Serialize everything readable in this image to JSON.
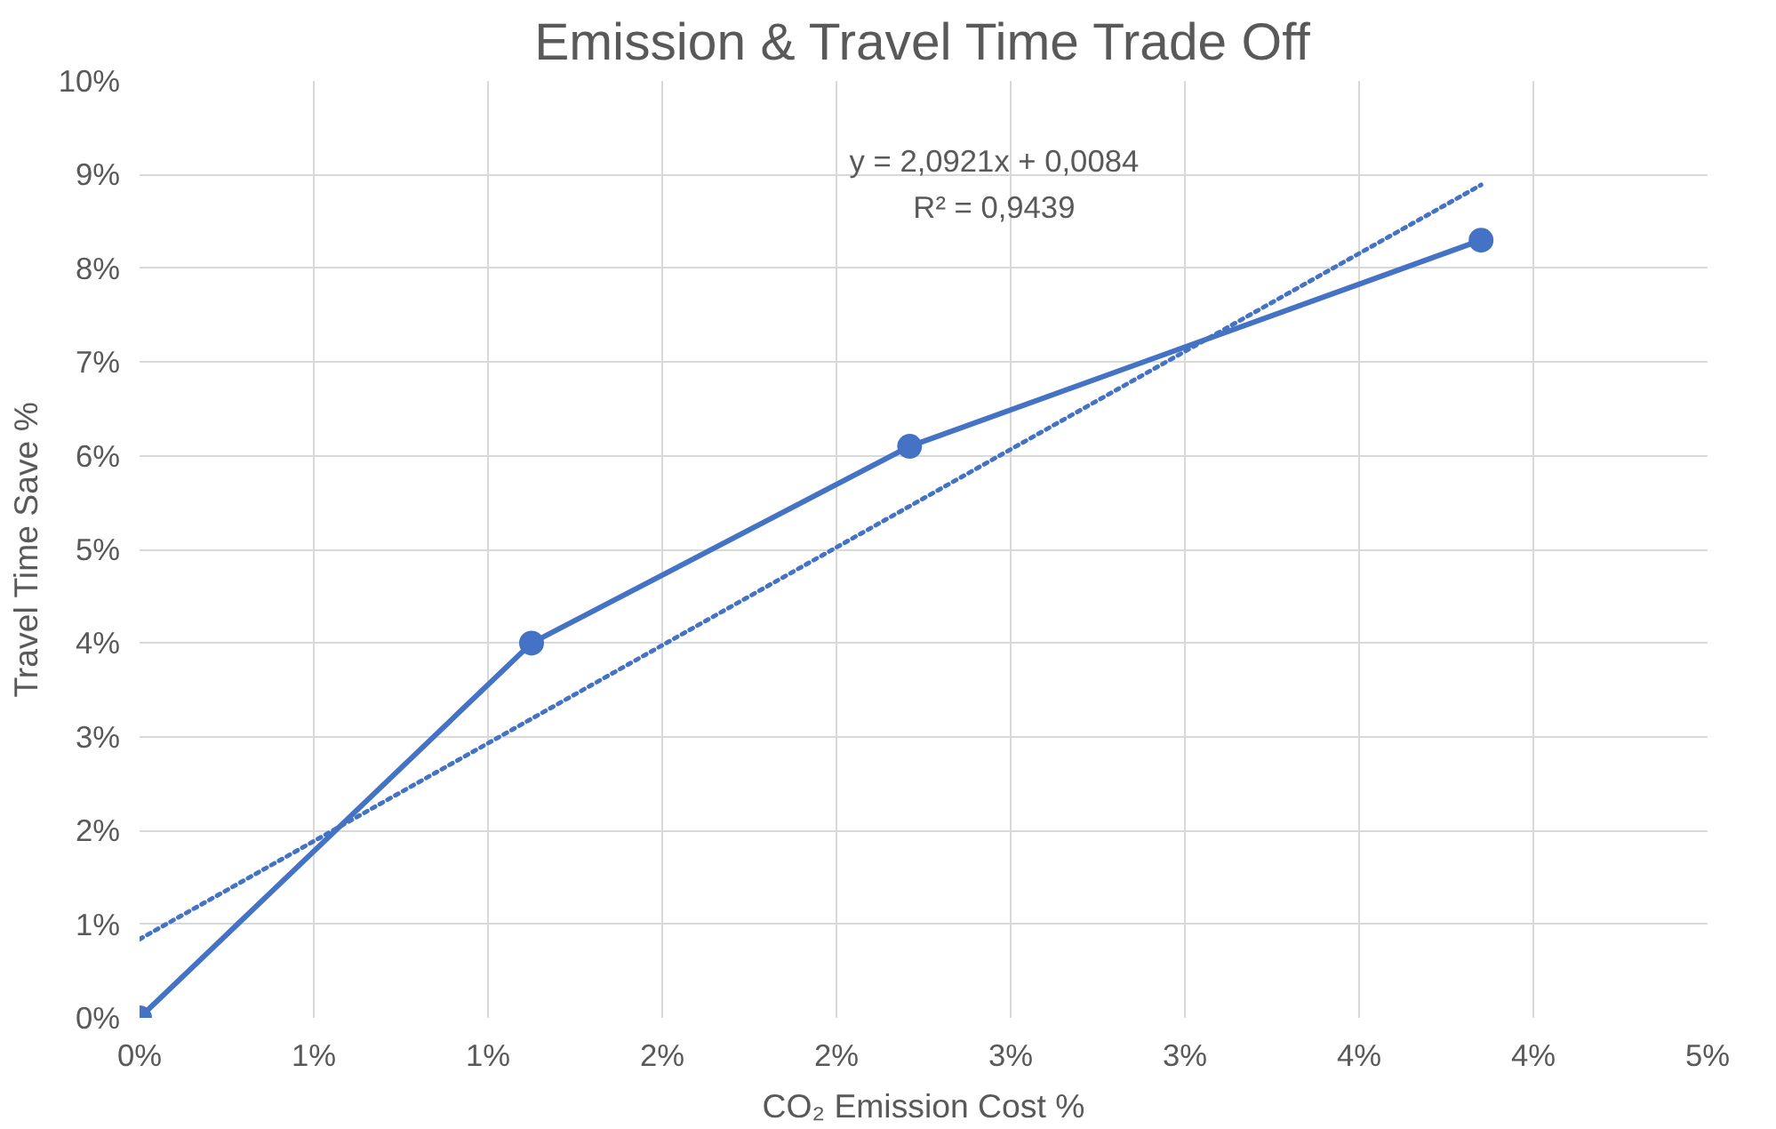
{
  "chart_data": {
    "type": "line",
    "title": "Emission & Travel Time Trade Off",
    "xlabel": "CO₂ Emission Cost %",
    "ylabel": "Travel Time Save %",
    "annotations": [
      "y = 2,0921x + 0,0084",
      "R² = 0,9439"
    ],
    "xlim": [
      0,
      4.5
    ],
    "ylim": [
      0,
      10
    ],
    "xticks": [
      {
        "value": 0,
        "label": "0%"
      },
      {
        "value": 0.5,
        "label": "1%"
      },
      {
        "value": 1,
        "label": "1%"
      },
      {
        "value": 1.5,
        "label": "2%"
      },
      {
        "value": 2,
        "label": "2%"
      },
      {
        "value": 2.5,
        "label": "3%"
      },
      {
        "value": 3,
        "label": "3%"
      },
      {
        "value": 3.5,
        "label": "4%"
      },
      {
        "value": 4,
        "label": "4%"
      },
      {
        "value": 4.5,
        "label": "5%"
      }
    ],
    "yticks": [
      {
        "value": 0,
        "label": "0%"
      },
      {
        "value": 1,
        "label": "1%"
      },
      {
        "value": 2,
        "label": "2%"
      },
      {
        "value": 3,
        "label": "3%"
      },
      {
        "value": 4,
        "label": "4%"
      },
      {
        "value": 5,
        "label": "5%"
      },
      {
        "value": 6,
        "label": "6%"
      },
      {
        "value": 7,
        "label": "7%"
      },
      {
        "value": 8,
        "label": "8%"
      },
      {
        "value": 9,
        "label": "9%"
      },
      {
        "value": 10,
        "label": "10%"
      }
    ],
    "grid": true,
    "marker": "circle",
    "line_style": "solid",
    "series": [
      {
        "color": "#4472c4",
        "x": [
          0,
          1.125,
          2.21,
          3.85
        ],
        "values": [
          0,
          4.0,
          6.1,
          8.3
        ]
      },
      {
        "color": "#4472c4",
        "x": [
          0,
          3.85
        ],
        "values": [
          0.84,
          8.89
        ],
        "marker": "none",
        "line_style": "dotted"
      }
    ]
  }
}
